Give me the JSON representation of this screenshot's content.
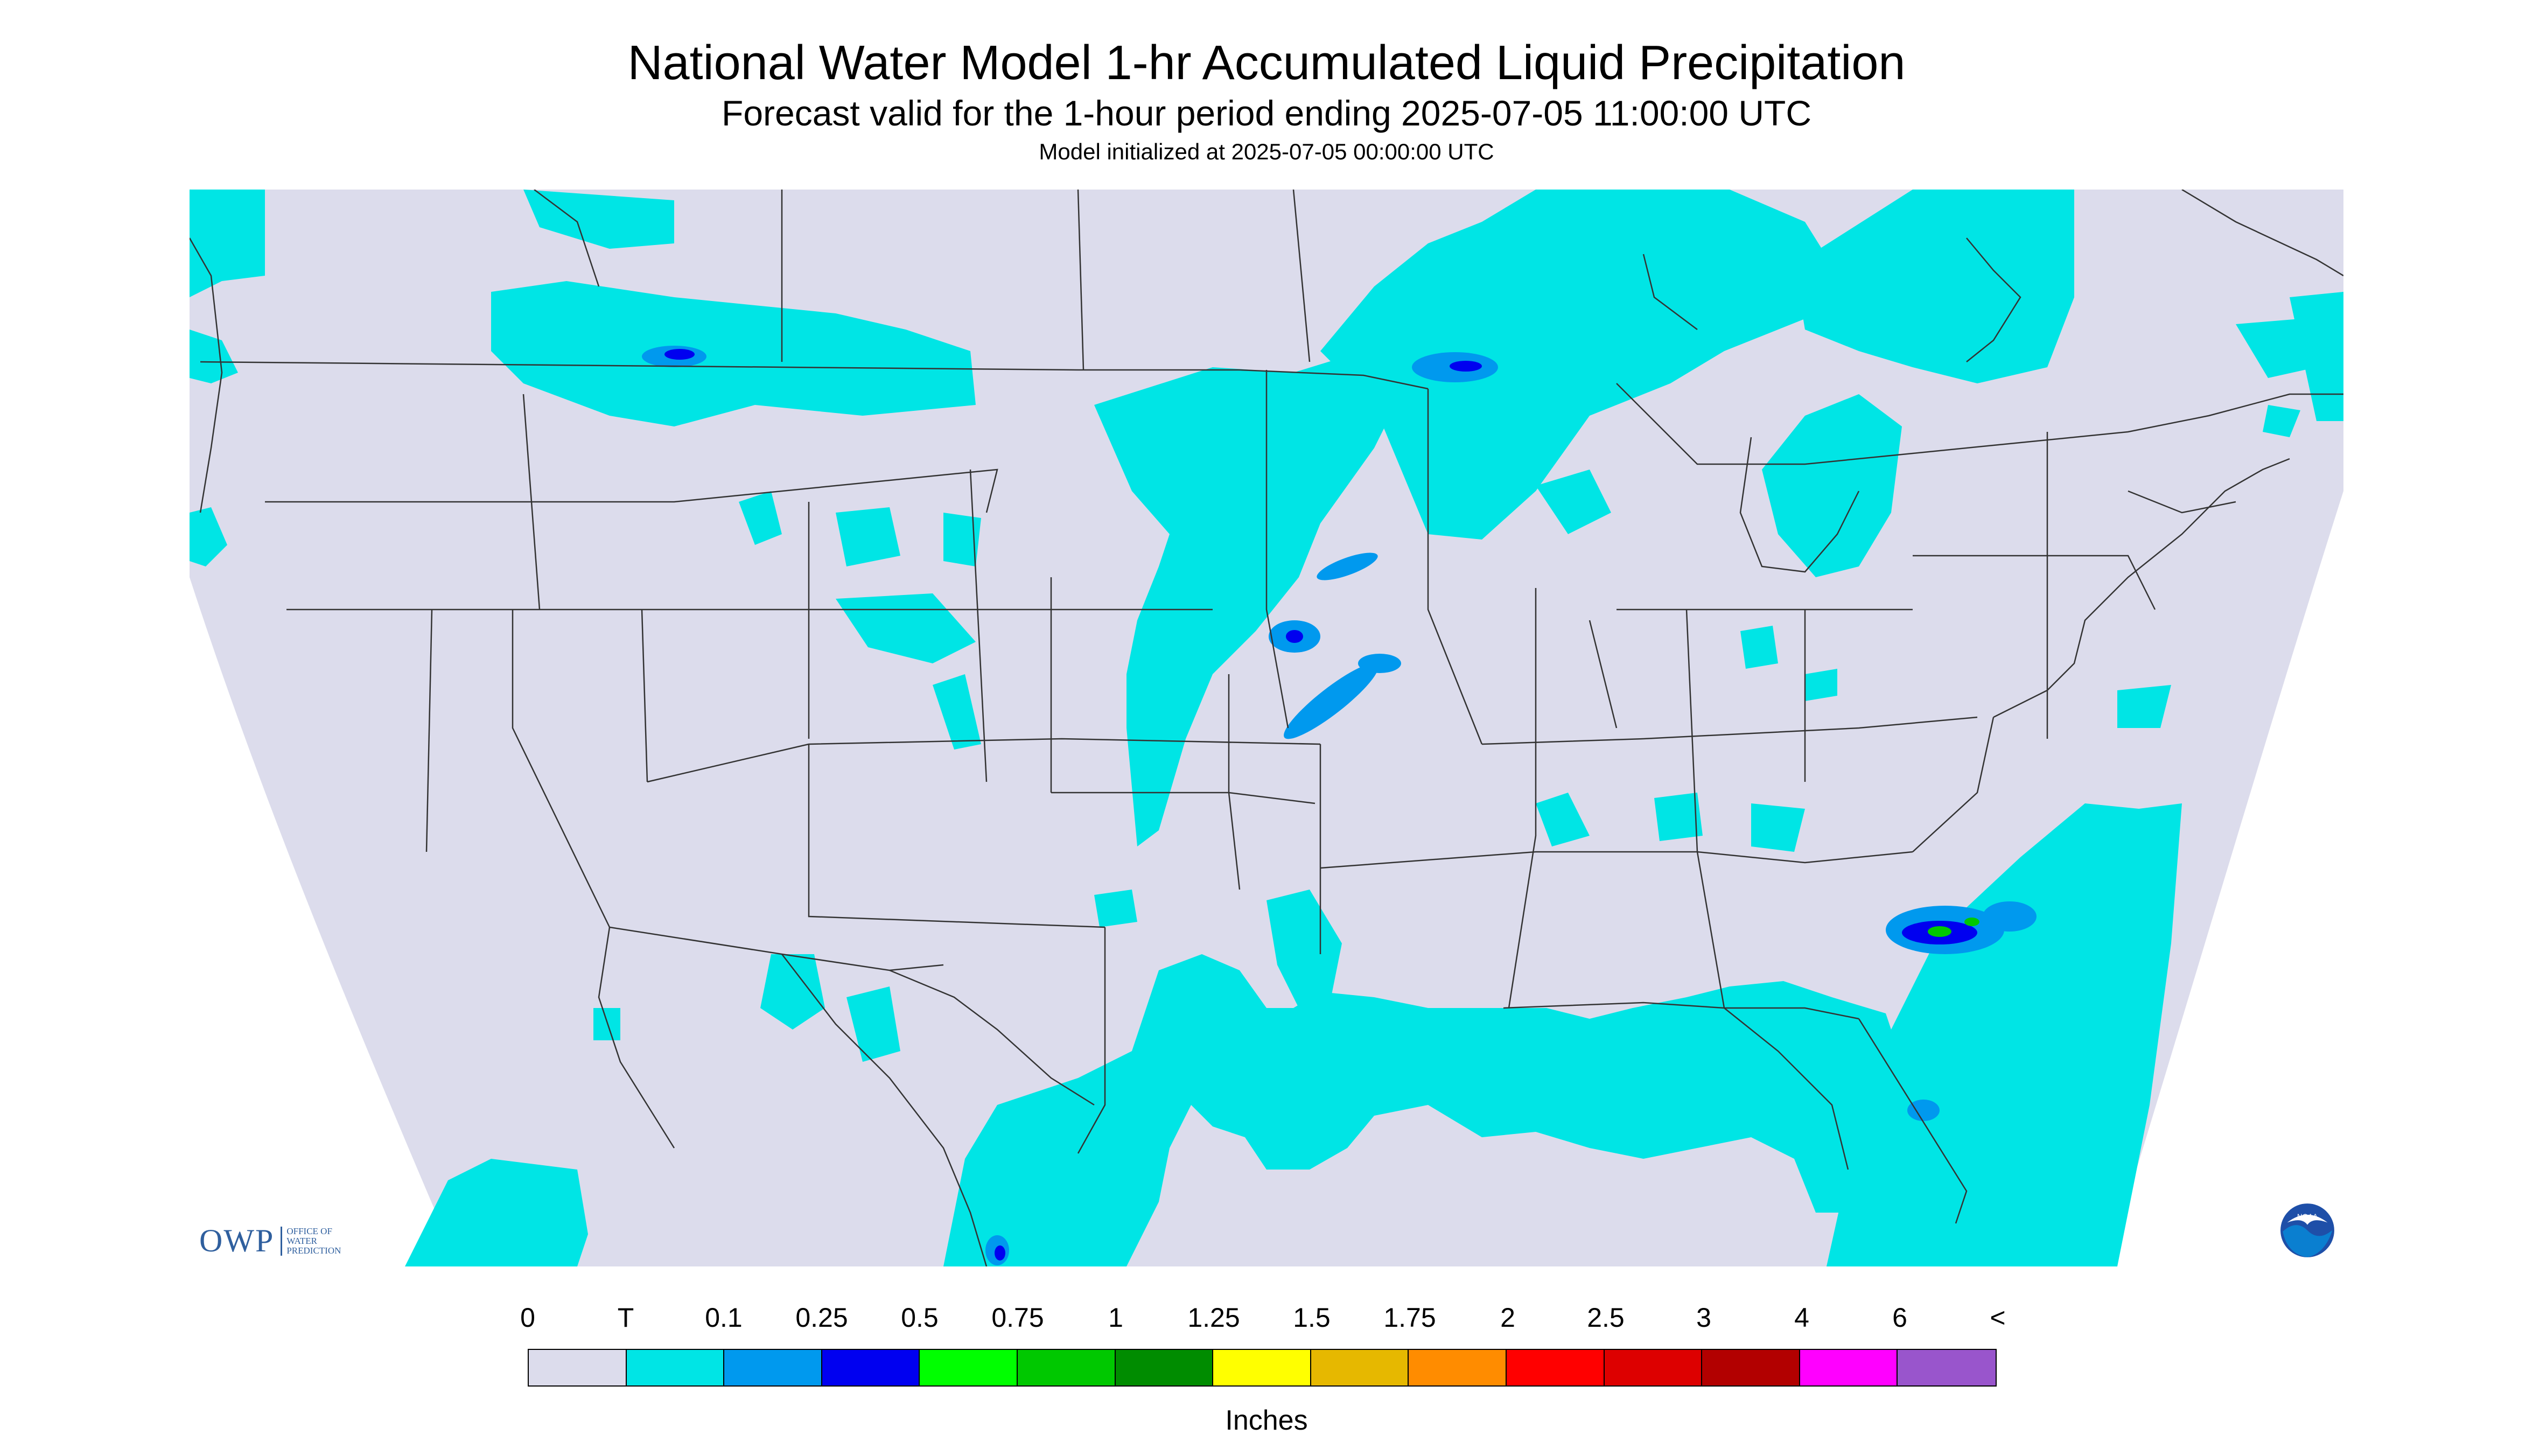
{
  "title": "National Water Model 1-hr Accumulated Liquid Precipitation",
  "subtitle": "Forecast valid for the 1-hour period ending 2025-07-05 11:00:00 UTC",
  "init": "Model initialized at 2025-07-05 00:00:00 UTC",
  "logo": {
    "text": "OWP",
    "line1": "OFFICE OF",
    "line2": "WATER",
    "line3": "PREDICTION"
  },
  "noaa_logo": "NOAA",
  "legend": {
    "labels": [
      "0",
      "T",
      "0.1",
      "0.25",
      "0.5",
      "0.75",
      "1",
      "1.25",
      "1.5",
      "1.75",
      "2",
      "2.5",
      "3",
      "4",
      "6",
      "<"
    ],
    "colors": [
      "#dcdcec",
      "#00e5e5",
      "#0099ee",
      "#0000f0",
      "#00ff00",
      "#00c800",
      "#008c00",
      "#ffff00",
      "#e6b800",
      "#ff8c00",
      "#ff0000",
      "#dd0000",
      "#b20000",
      "#ff00ff",
      "#9955cc"
    ],
    "units": "Inches"
  },
  "colors": {
    "map_background": "#dcdcec",
    "precip_trace": "#00e5e5",
    "precip_light": "#0099ee",
    "precip_mod": "#0000f0",
    "precip_heavy": "#00c800",
    "boundary": "#333333"
  }
}
